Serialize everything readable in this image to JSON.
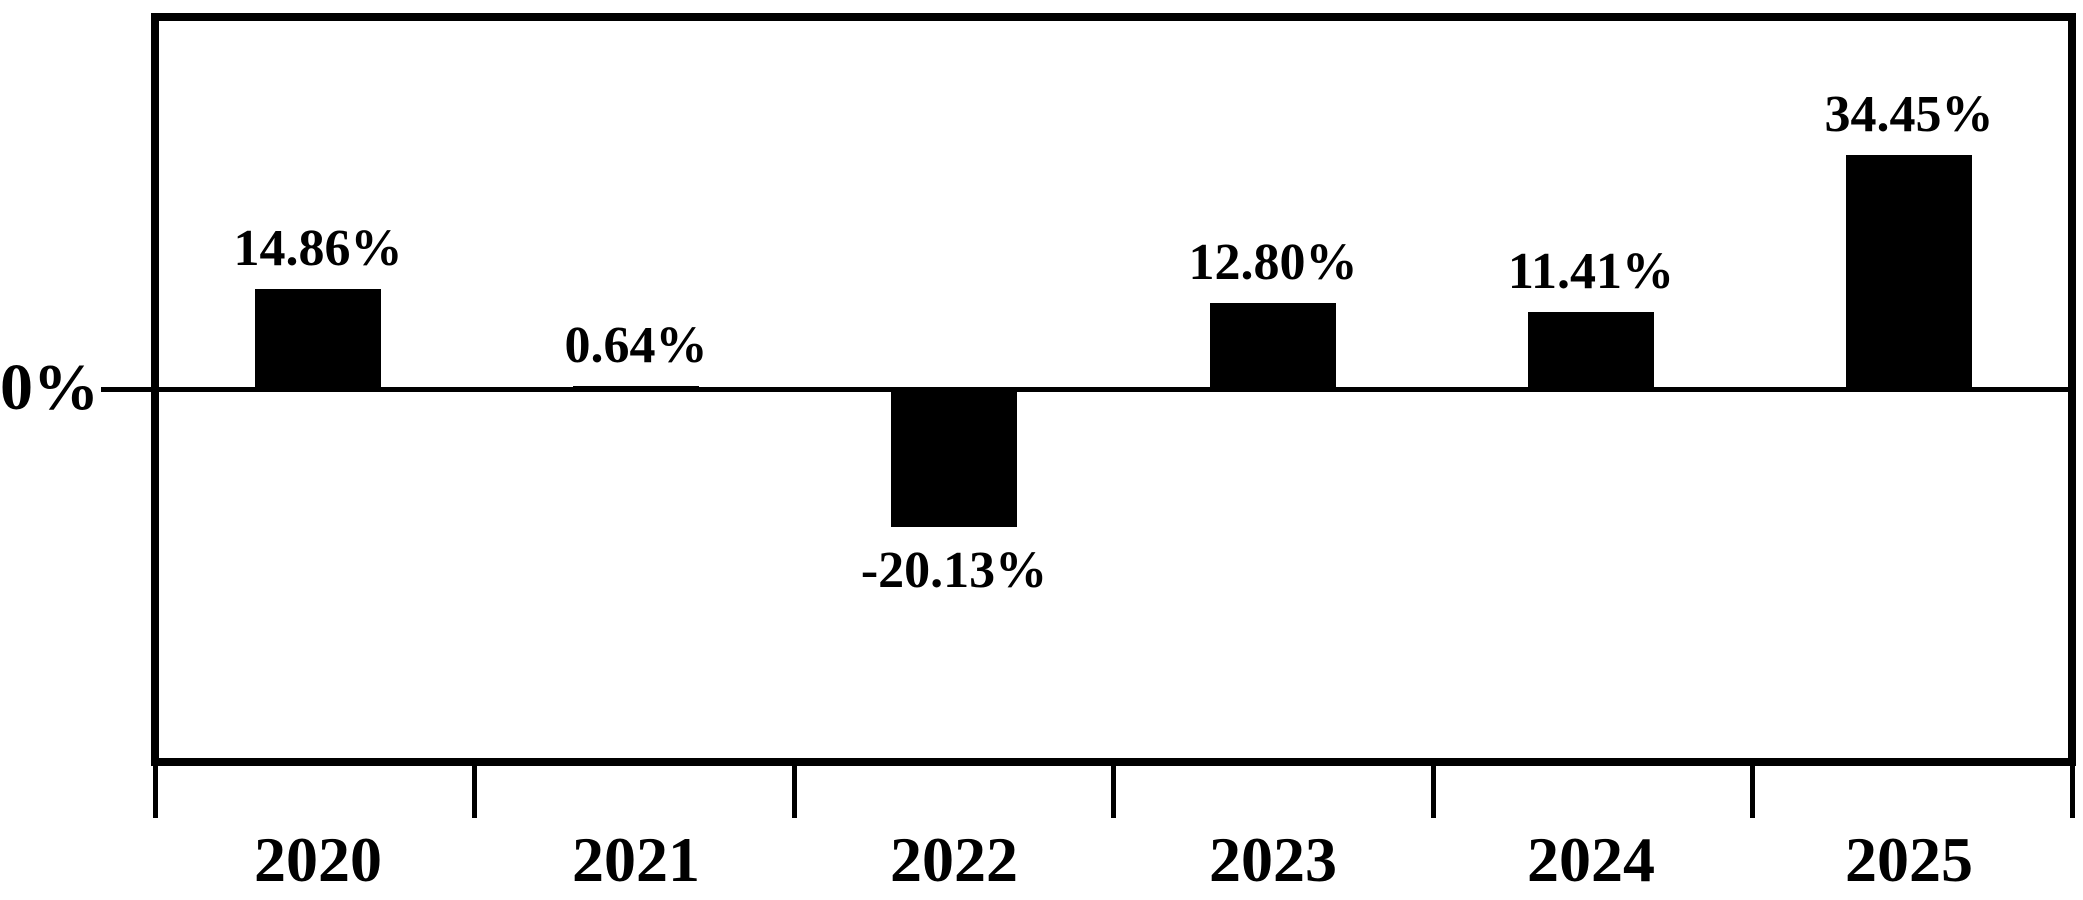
{
  "chart_data": {
    "type": "bar",
    "categories": [
      "2020",
      "2021",
      "2022",
      "2023",
      "2024",
      "2025"
    ],
    "values": [
      14.86,
      0.64,
      -20.13,
      12.8,
      11.41,
      34.45
    ],
    "value_labels": [
      "14.86%",
      "0.64%",
      "-20.13%",
      "12.80%",
      "11.41%",
      "34.45%"
    ],
    "zero_label": "0%",
    "title": "",
    "xlabel": "",
    "ylabel": "",
    "ylim": [
      -54,
      54
    ],
    "grid": false,
    "legend": false,
    "bar_color": "#000000",
    "axis_color": "#000000",
    "background_color": "#ffffff"
  }
}
